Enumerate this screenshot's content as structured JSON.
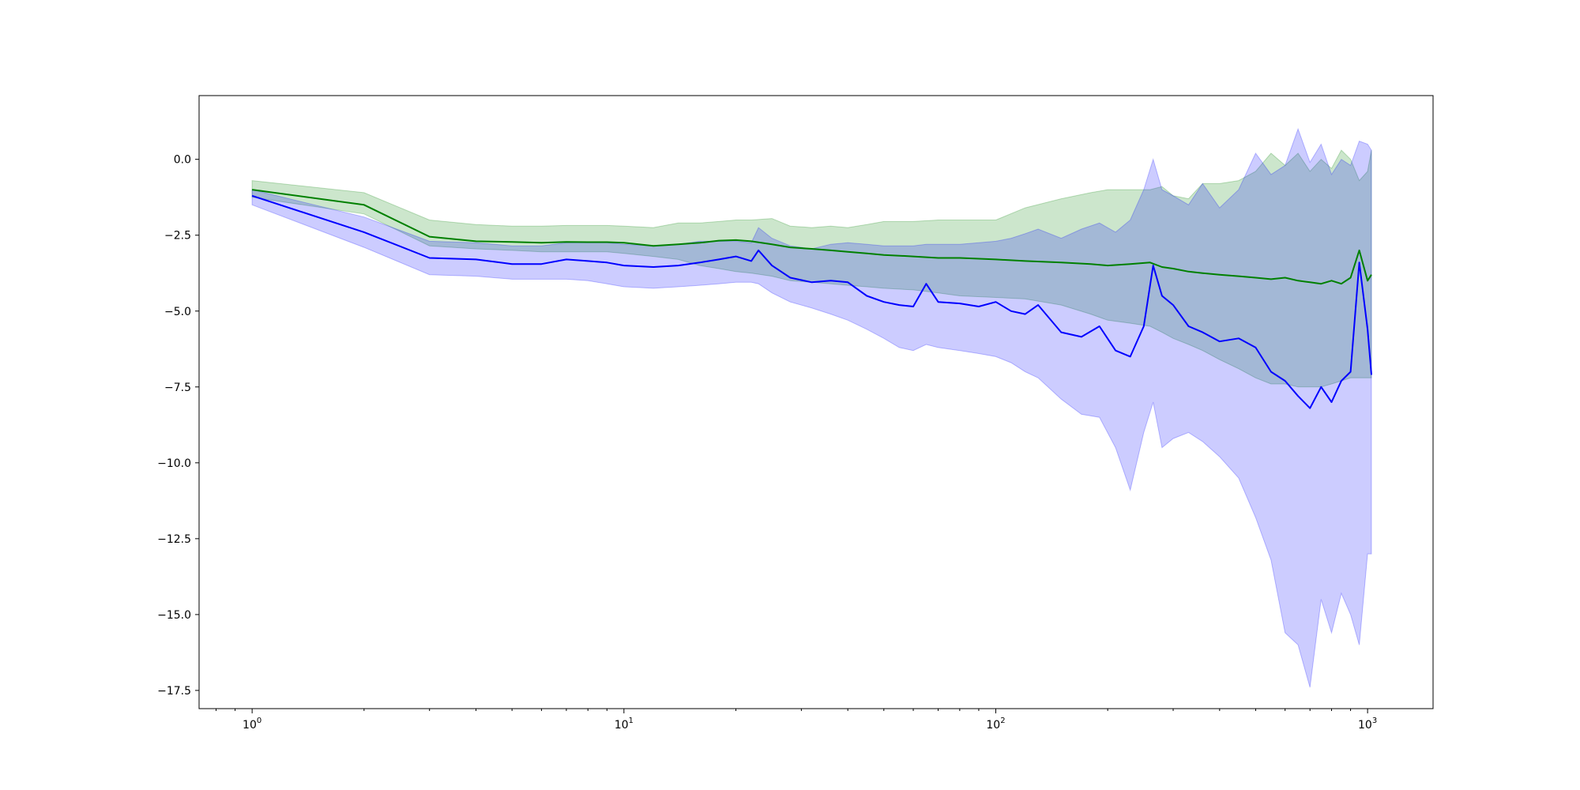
{
  "chart_data": {
    "type": "line",
    "xscale": "log",
    "xlim": [
      0.72,
      1500
    ],
    "ylim": [
      -18.1,
      2.1
    ],
    "grid": false,
    "yticks": [
      {
        "value": 0,
        "label": "0.0"
      },
      {
        "value": -2.5,
        "label": "−2.5"
      },
      {
        "value": -5,
        "label": "−5.0"
      },
      {
        "value": -7.5,
        "label": "−7.5"
      },
      {
        "value": -10,
        "label": "−10.0"
      },
      {
        "value": -12.5,
        "label": "−12.5"
      },
      {
        "value": -15,
        "label": "−15.0"
      },
      {
        "value": -17.5,
        "label": "−17.5"
      }
    ],
    "xticks": [
      {
        "value": 1,
        "base": "10",
        "exp": "0"
      },
      {
        "value": 10,
        "base": "10",
        "exp": "1"
      },
      {
        "value": 100,
        "base": "10",
        "exp": "2"
      },
      {
        "value": 1000,
        "base": "10",
        "exp": "3"
      }
    ],
    "series": [
      {
        "color": "#008000",
        "band_color": "#008000",
        "x": [
          1,
          2,
          3,
          4,
          5,
          6,
          7,
          8,
          9,
          10,
          12,
          14,
          16,
          18,
          20,
          22,
          25,
          28,
          32,
          36,
          40,
          45,
          50,
          60,
          70,
          80,
          100,
          120,
          150,
          180,
          200,
          230,
          260,
          280,
          300,
          330,
          360,
          400,
          450,
          500,
          550,
          600,
          650,
          700,
          750,
          800,
          850,
          900,
          950,
          1000,
          1024
        ],
        "y": [
          -1.0,
          -1.5,
          -2.55,
          -2.7,
          -2.72,
          -2.75,
          -2.72,
          -2.73,
          -2.73,
          -2.75,
          -2.85,
          -2.8,
          -2.75,
          -2.68,
          -2.66,
          -2.7,
          -2.8,
          -2.9,
          -2.95,
          -3.0,
          -3.05,
          -3.1,
          -3.15,
          -3.2,
          -3.25,
          -3.25,
          -3.3,
          -3.35,
          -3.4,
          -3.45,
          -3.5,
          -3.45,
          -3.4,
          -3.55,
          -3.6,
          -3.7,
          -3.75,
          -3.8,
          -3.85,
          -3.9,
          -3.95,
          -3.9,
          -4.0,
          -4.05,
          -4.1,
          -4.0,
          -4.1,
          -3.9,
          -3.0,
          -4.0,
          -3.8
        ],
        "lower": [
          -1.25,
          -1.8,
          -2.85,
          -2.95,
          -3.0,
          -3.05,
          -3.05,
          -3.05,
          -3.05,
          -3.1,
          -3.2,
          -3.3,
          -3.5,
          -3.6,
          -3.7,
          -3.75,
          -3.85,
          -4.0,
          -4.05,
          -4.1,
          -4.15,
          -4.2,
          -4.25,
          -4.3,
          -4.4,
          -4.5,
          -4.55,
          -4.6,
          -4.8,
          -5.1,
          -5.3,
          -5.4,
          -5.5,
          -5.7,
          -5.9,
          -6.1,
          -6.3,
          -6.6,
          -6.9,
          -7.2,
          -7.4,
          -7.4,
          -7.5,
          -7.5,
          -7.5,
          -7.4,
          -7.3,
          -7.2,
          -7.2,
          -7.2,
          -7.2
        ],
        "upper": [
          -0.7,
          -1.1,
          -2.0,
          -2.15,
          -2.2,
          -2.2,
          -2.18,
          -2.18,
          -2.18,
          -2.2,
          -2.25,
          -2.1,
          -2.1,
          -2.05,
          -2.0,
          -2.0,
          -1.95,
          -2.2,
          -2.25,
          -2.2,
          -2.25,
          -2.15,
          -2.05,
          -2.05,
          -2.0,
          -2.0,
          -2.0,
          -1.6,
          -1.3,
          -1.1,
          -1.0,
          -1.0,
          -1.0,
          -0.9,
          -1.2,
          -1.3,
          -0.8,
          -0.8,
          -0.7,
          -0.4,
          0.2,
          -0.2,
          0.2,
          -0.4,
          0.0,
          -0.3,
          0.3,
          0.0,
          -0.7,
          -0.4,
          0.3
        ]
      },
      {
        "color": "#0000ff",
        "band_color": "#0000ff",
        "x": [
          1,
          2,
          3,
          4,
          5,
          6,
          7,
          8,
          9,
          10,
          12,
          14,
          16,
          18,
          20,
          22,
          23,
          25,
          28,
          32,
          36,
          40,
          45,
          50,
          55,
          60,
          65,
          70,
          80,
          90,
          100,
          110,
          120,
          130,
          150,
          170,
          190,
          210,
          230,
          250,
          265,
          280,
          300,
          330,
          360,
          400,
          450,
          500,
          550,
          600,
          650,
          700,
          750,
          800,
          850,
          900,
          950,
          1000,
          1024
        ],
        "y": [
          -1.2,
          -2.4,
          -3.25,
          -3.3,
          -3.45,
          -3.45,
          -3.3,
          -3.35,
          -3.4,
          -3.5,
          -3.55,
          -3.5,
          -3.4,
          -3.3,
          -3.2,
          -3.35,
          -3.0,
          -3.5,
          -3.9,
          -4.05,
          -4.0,
          -4.05,
          -4.5,
          -4.7,
          -4.8,
          -4.85,
          -4.1,
          -4.7,
          -4.75,
          -4.85,
          -4.7,
          -5.0,
          -5.1,
          -4.8,
          -5.7,
          -5.85,
          -5.5,
          -6.3,
          -6.5,
          -5.5,
          -3.5,
          -4.5,
          -4.8,
          -5.5,
          -5.7,
          -6.0,
          -5.9,
          -6.2,
          -7.0,
          -7.3,
          -7.8,
          -8.2,
          -7.5,
          -8.0,
          -7.3,
          -7.0,
          -3.4,
          -5.6,
          -7.1
        ],
        "lower": [
          -1.5,
          -2.9,
          -3.8,
          -3.85,
          -3.95,
          -3.95,
          -3.95,
          -4.0,
          -4.1,
          -4.2,
          -4.25,
          -4.2,
          -4.15,
          -4.1,
          -4.05,
          -4.05,
          -4.1,
          -4.4,
          -4.7,
          -4.9,
          -5.1,
          -5.3,
          -5.6,
          -5.9,
          -6.2,
          -6.3,
          -6.1,
          -6.2,
          -6.3,
          -6.4,
          -6.5,
          -6.7,
          -7.0,
          -7.2,
          -7.9,
          -8.4,
          -8.5,
          -9.5,
          -10.9,
          -9.0,
          -8.0,
          -9.5,
          -9.2,
          -9.0,
          -9.3,
          -9.8,
          -10.5,
          -11.8,
          -13.2,
          -15.6,
          -16.0,
          -17.4,
          -14.5,
          -15.6,
          -14.3,
          -15.0,
          -16.0,
          -13.0,
          -13.0
        ],
        "upper": [
          -1.0,
          -1.9,
          -2.7,
          -2.75,
          -2.85,
          -2.85,
          -2.75,
          -2.75,
          -2.75,
          -2.8,
          -2.85,
          -2.8,
          -2.7,
          -2.7,
          -2.7,
          -2.75,
          -2.25,
          -2.6,
          -2.85,
          -2.95,
          -2.8,
          -2.75,
          -2.8,
          -2.85,
          -2.85,
          -2.85,
          -2.8,
          -2.8,
          -2.8,
          -2.75,
          -2.7,
          -2.6,
          -2.45,
          -2.3,
          -2.6,
          -2.3,
          -2.1,
          -2.4,
          -2.0,
          -1.0,
          0.0,
          -1.0,
          -1.2,
          -1.5,
          -0.8,
          -1.6,
          -1.0,
          0.2,
          -0.5,
          -0.2,
          1.0,
          -0.1,
          0.5,
          -0.5,
          0.0,
          -0.2,
          0.6,
          0.5,
          0.3
        ]
      }
    ]
  }
}
